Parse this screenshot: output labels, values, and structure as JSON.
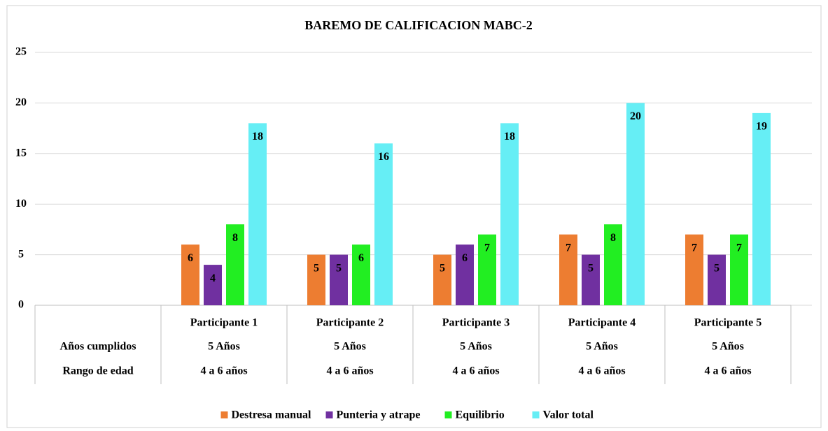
{
  "chart_data": {
    "type": "bar",
    "title": "BAREMO DE CALIFICACION MABC-2",
    "categories": [
      "Participante 1",
      "Participante 2",
      "Participante 3",
      "Participante 4",
      "Participante 5"
    ],
    "series": [
      {
        "name": "Destresa manual",
        "color": "#ed7d31",
        "values": [
          6,
          5,
          5,
          7,
          7
        ]
      },
      {
        "name": "Punteria y atrape",
        "color": "#7030a0",
        "values": [
          4,
          5,
          6,
          5,
          5
        ]
      },
      {
        "name": "Equilibrio",
        "color": "#22ee22",
        "values": [
          8,
          6,
          7,
          8,
          7
        ]
      },
      {
        "name": "Valor total",
        "color": "#66eef5",
        "values": [
          18,
          16,
          18,
          20,
          19
        ]
      }
    ],
    "table_rows": [
      {
        "label": "Años cumplidos",
        "values": [
          "5 Años",
          "5 Años",
          "5 Años",
          "5 Años",
          "5 Años"
        ]
      },
      {
        "label": "Rango de edad",
        "values": [
          "4 a 6 años",
          "4 a 6 años",
          "4 a 6 años",
          "4 a 6 años",
          "4 a 6 años"
        ]
      }
    ],
    "ylim": [
      0,
      25
    ],
    "yticks": [
      0,
      5,
      10,
      15,
      20,
      25
    ],
    "grid": true,
    "legend": "bottom"
  }
}
